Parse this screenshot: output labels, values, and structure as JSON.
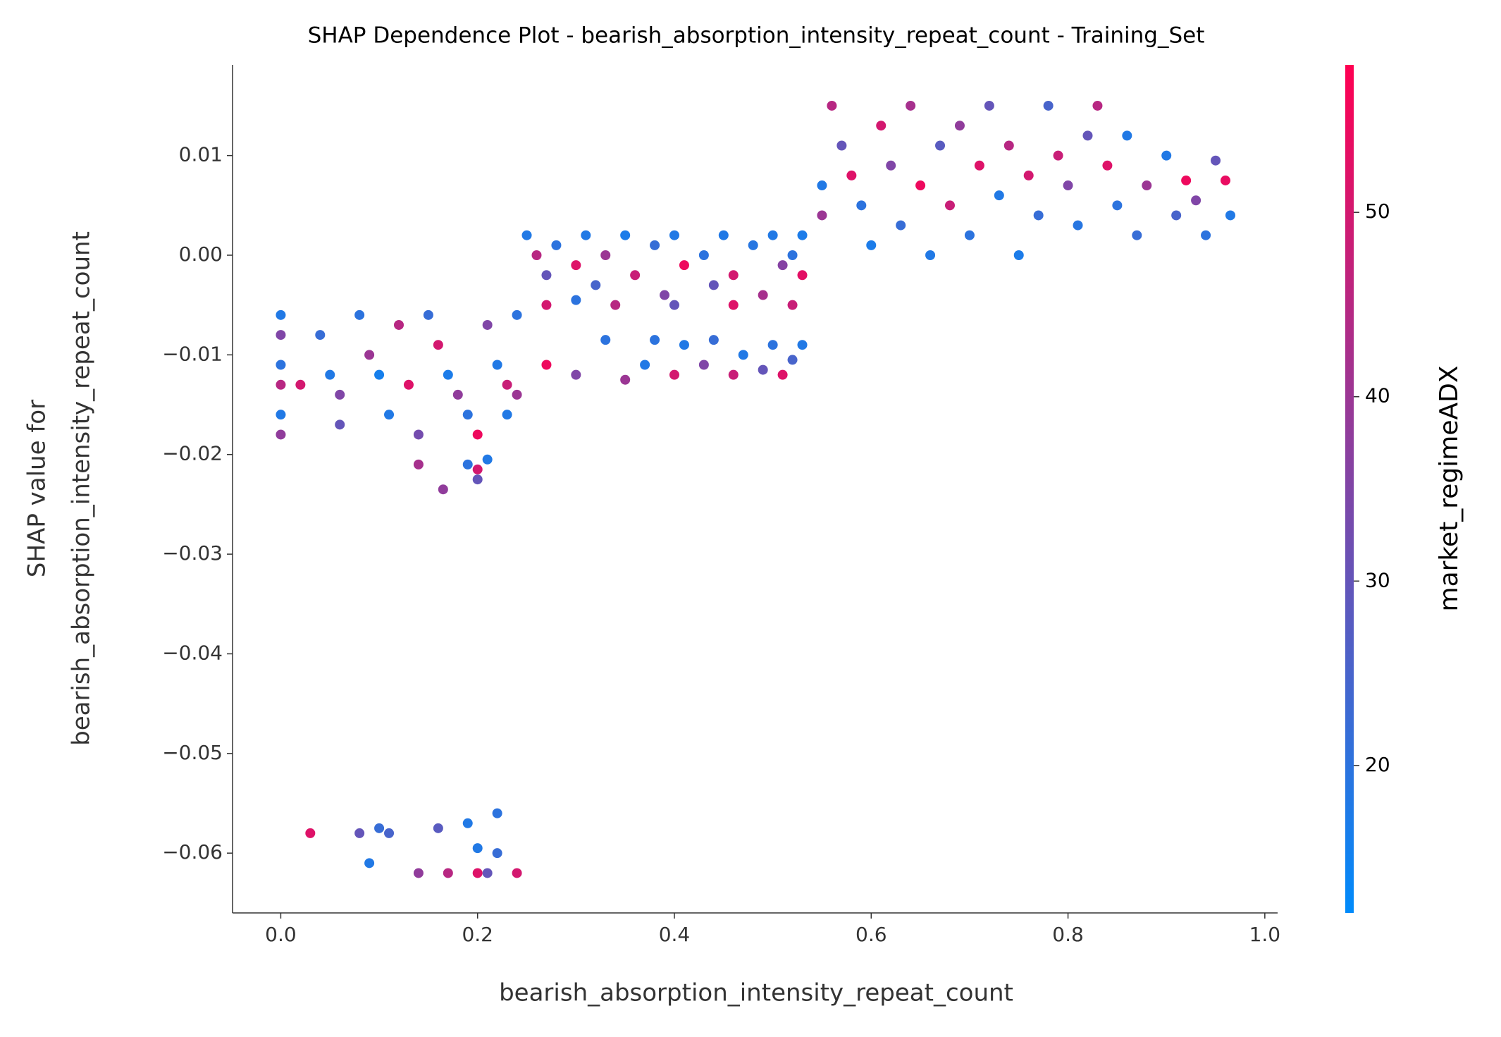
{
  "chart_data": {
    "type": "scatter",
    "title": "SHAP Dependence Plot - bearish_absorption_intensity_repeat_count - Training_Set",
    "xlabel": "bearish_absorption_intensity_repeat_count",
    "ylabel": [
      "SHAP value for",
      "bearish_absorption_intensity_repeat_count"
    ],
    "xlim": [
      -0.049,
      1.013
    ],
    "xticks": [
      {
        "value": 0,
        "label": "0.0"
      },
      0.2,
      0.4,
      0.6,
      0.8,
      {
        "value": 1,
        "label": "1.0"
      }
    ],
    "ylim": [
      -0.066,
      0.0191
    ],
    "yticks": [
      {
        "value": -0.06,
        "label": "−0.06"
      },
      {
        "value": -0.05,
        "label": "−0.05"
      },
      {
        "value": -0.04,
        "label": "−0.04"
      },
      {
        "value": -0.03,
        "label": "−0.03"
      },
      {
        "value": -0.02,
        "label": "−0.02"
      },
      {
        "value": -0.01,
        "label": "−0.01"
      },
      {
        "value": 0,
        "label": "0.00"
      },
      0.01
    ],
    "colorbar": {
      "label": "market_regimeADX",
      "lim": [
        12,
        58
      ],
      "ticks": [
        20,
        30,
        40,
        50
      ],
      "cmap": [
        "#008bfb",
        "#ff0052"
      ]
    },
    "x": [
      0,
      0,
      0,
      0,
      0,
      0,
      0.02,
      0.04,
      0.05,
      0.06,
      0.06,
      0.08,
      0.09,
      0.1,
      0.11,
      0.12,
      0.13,
      0.14,
      0.15,
      0.16,
      0.17,
      0.18,
      0.19,
      0.2,
      0.21,
      0.22,
      0.23,
      0.23,
      0.24,
      0.24,
      0.14,
      0.165,
      0.19,
      0.2,
      0.2,
      0.21,
      0.03,
      0.08,
      0.09,
      0.1,
      0.11,
      0.14,
      0.16,
      0.17,
      0.19,
      0.2,
      0.2,
      0.21,
      0.22,
      0.22,
      0.24,
      0.25,
      0.26,
      0.27,
      0.28,
      0.3,
      0.31,
      0.32,
      0.33,
      0.35,
      0.36,
      0.38,
      0.39,
      0.4,
      0.41,
      0.43,
      0.44,
      0.45,
      0.46,
      0.48,
      0.49,
      0.5,
      0.51,
      0.52,
      0.53,
      0.53,
      0.27,
      0.3,
      0.34,
      0.4,
      0.46,
      0.52,
      0.27,
      0.3,
      0.33,
      0.35,
      0.37,
      0.38,
      0.4,
      0.41,
      0.43,
      0.44,
      0.46,
      0.47,
      0.49,
      0.5,
      0.51,
      0.52,
      0.53,
      0.55,
      0.55,
      0.56,
      0.57,
      0.58,
      0.59,
      0.6,
      0.61,
      0.62,
      0.63,
      0.64,
      0.65,
      0.66,
      0.67,
      0.68,
      0.69,
      0.7,
      0.71,
      0.72,
      0.73,
      0.74,
      0.75,
      0.76,
      0.77,
      0.78,
      0.79,
      0.8,
      0.81,
      0.82,
      0.83,
      0.84,
      0.85,
      0.86,
      0.87,
      0.88,
      0.9,
      0.91,
      0.92,
      0.93,
      0.94,
      0.95,
      0.96,
      0.965
    ],
    "values": [
      -0.006,
      -0.008,
      -0.011,
      -0.013,
      -0.016,
      -0.018,
      -0.013,
      -0.008,
      -0.012,
      -0.014,
      -0.017,
      -0.006,
      -0.01,
      -0.012,
      -0.016,
      -0.007,
      -0.013,
      -0.018,
      -0.006,
      -0.009,
      -0.012,
      -0.014,
      -0.016,
      -0.018,
      -0.007,
      -0.011,
      -0.013,
      -0.016,
      -0.006,
      -0.014,
      -0.021,
      -0.0235,
      -0.021,
      -0.0215,
      -0.0225,
      -0.0205,
      -0.058,
      -0.058,
      -0.061,
      -0.0575,
      -0.058,
      -0.062,
      -0.0575,
      -0.062,
      -0.057,
      -0.0595,
      -0.062,
      -0.062,
      -0.056,
      -0.06,
      -0.062,
      0.002,
      0,
      -0.002,
      0.001,
      -0.001,
      0.002,
      -0.003,
      0,
      0.002,
      -0.002,
      0.001,
      -0.004,
      0.002,
      -0.001,
      0,
      -0.003,
      0.002,
      -0.002,
      0.001,
      -0.004,
      0.002,
      -0.001,
      0,
      -0.002,
      0.002,
      -0.005,
      -0.0045,
      -0.005,
      -0.005,
      -0.005,
      -0.005,
      -0.011,
      -0.012,
      -0.0085,
      -0.0125,
      -0.011,
      -0.0085,
      -0.012,
      -0.009,
      -0.011,
      -0.0085,
      -0.012,
      -0.01,
      -0.0115,
      -0.009,
      -0.012,
      -0.0105,
      -0.009,
      0.007,
      0.004,
      0.015,
      0.011,
      0.008,
      0.005,
      0.001,
      0.013,
      0.009,
      0.003,
      0.015,
      0.007,
      0,
      0.011,
      0.005,
      0.013,
      0.002,
      0.009,
      0.015,
      0.006,
      0.011,
      0,
      0.008,
      0.004,
      0.015,
      0.01,
      0.007,
      0.003,
      0.012,
      0.015,
      0.009,
      0.005,
      0.012,
      0.002,
      0.007,
      0.01,
      0.004,
      0.0075,
      0.0055,
      0.002,
      0.0095,
      0.0075,
      0.004
    ],
    "color_values": [
      18,
      35,
      20,
      45,
      18,
      38,
      50,
      22,
      18,
      35,
      30,
      20,
      40,
      16,
      18,
      45,
      52,
      33,
      22,
      50,
      17,
      38,
      20,
      55,
      35,
      18,
      48,
      18,
      20,
      40,
      42,
      38,
      20,
      50,
      30,
      18,
      52,
      30,
      18,
      22,
      25,
      38,
      28,
      45,
      18,
      18,
      52,
      30,
      20,
      22,
      50,
      18,
      45,
      30,
      20,
      52,
      18,
      25,
      40,
      17,
      48,
      22,
      35,
      18,
      55,
      20,
      30,
      18,
      50,
      19,
      42,
      18,
      36,
      20,
      53,
      17,
      50,
      20,
      45,
      30,
      52,
      48,
      55,
      35,
      20,
      40,
      18,
      20,
      50,
      18,
      35,
      22,
      48,
      18,
      30,
      20,
      52,
      25,
      18,
      18,
      40,
      45,
      30,
      52,
      20,
      17,
      50,
      35,
      22,
      42,
      55,
      18,
      28,
      48,
      38,
      20,
      52,
      30,
      18,
      45,
      17,
      50,
      22,
      25,
      48,
      35,
      19,
      30,
      45,
      52,
      20,
      18,
      22,
      40,
      18,
      25,
      55,
      35,
      20,
      30,
      54,
      18
    ]
  }
}
